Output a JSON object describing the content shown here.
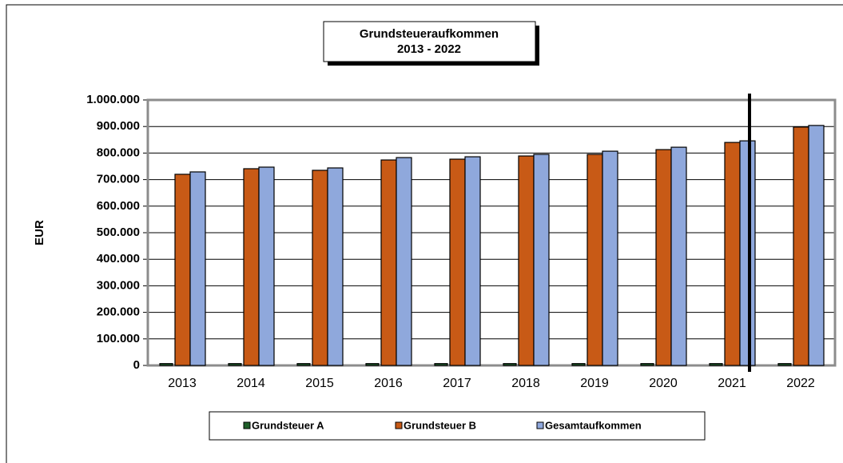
{
  "chart_data": {
    "type": "bar",
    "title": "Grundsteueraufkommen",
    "subtitle": "2013 - 2022",
    "y_label": "EUR",
    "categories": [
      "2013",
      "2014",
      "2015",
      "2016",
      "2017",
      "2018",
      "2019",
      "2020",
      "2021",
      "2022"
    ],
    "series": [
      {
        "name": "Grundsteuer A",
        "color": "#1f5f2a",
        "values": [
          7000,
          7000,
          7000,
          7000,
          7000,
          7000,
          7000,
          7000,
          7000,
          7000
        ]
      },
      {
        "name": "Grundsteuer B",
        "color": "#c85a16",
        "values": [
          720000,
          741000,
          735000,
          774000,
          777000,
          789000,
          795000,
          813000,
          840000,
          898000
        ]
      },
      {
        "name": "Gesamtaufkommen",
        "color": "#8fa8dc",
        "values": [
          729000,
          747000,
          744000,
          783000,
          786000,
          795000,
          807000,
          822000,
          846000,
          904000
        ]
      }
    ],
    "ylim": [
      0,
      1000000
    ],
    "yticks": [
      0,
      {
        "value": 100000,
        "label": "100.000"
      },
      {
        "value": 200000,
        "label": "200.000"
      },
      {
        "value": 300000,
        "label": "300.000"
      },
      {
        "value": 400000,
        "label": "400.000"
      },
      {
        "value": 500000,
        "label": "500.000"
      },
      {
        "value": 600000,
        "label": "600.000"
      },
      {
        "value": 700000,
        "label": "700.000"
      },
      {
        "value": 800000,
        "label": "800.000"
      },
      {
        "value": 900000,
        "label": "900.000"
      },
      {
        "value": 1000000,
        "label": "1.000.000"
      }
    ],
    "grid": true,
    "legend": "bottom"
  }
}
